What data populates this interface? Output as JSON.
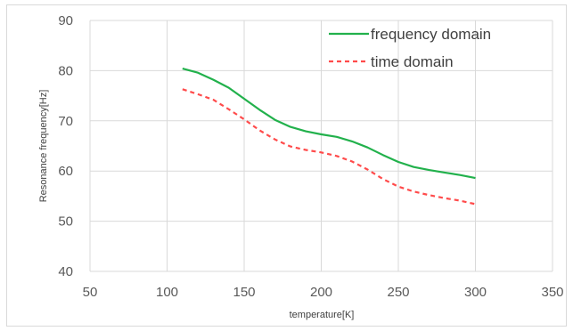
{
  "chart_data": {
    "type": "line",
    "xlabel": "temperature[K]",
    "ylabel": "Resonance frequency[Hz]",
    "xlim": [
      50,
      350
    ],
    "ylim": [
      40,
      90
    ],
    "x_ticks": [
      50,
      100,
      150,
      200,
      250,
      300,
      350
    ],
    "y_ticks": [
      40,
      50,
      60,
      70,
      80,
      90
    ],
    "grid": "both",
    "legend_position": "top-right",
    "series": [
      {
        "name": "frequency domain",
        "color": "#22b14c",
        "style": "solid",
        "x": [
          110,
          120,
          130,
          140,
          150,
          160,
          170,
          180,
          190,
          200,
          210,
          220,
          230,
          240,
          250,
          260,
          270,
          280,
          290,
          300
        ],
        "y": [
          80.4,
          79.6,
          78.2,
          76.6,
          74.4,
          72.2,
          70.2,
          68.8,
          67.9,
          67.3,
          66.8,
          65.9,
          64.7,
          63.2,
          61.8,
          60.8,
          60.2,
          59.7,
          59.2,
          58.6
        ]
      },
      {
        "name": "time domain",
        "color": "#ff4b4b",
        "style": "dashed",
        "x": [
          110,
          120,
          130,
          140,
          150,
          160,
          170,
          180,
          190,
          200,
          210,
          220,
          230,
          240,
          250,
          260,
          270,
          280,
          290,
          300
        ],
        "y": [
          76.3,
          75.3,
          74.2,
          72.3,
          70.3,
          68.1,
          66.3,
          64.9,
          64.2,
          63.7,
          63.0,
          61.9,
          60.3,
          58.4,
          56.9,
          55.9,
          55.2,
          54.6,
          54.1,
          53.4
        ]
      }
    ]
  }
}
